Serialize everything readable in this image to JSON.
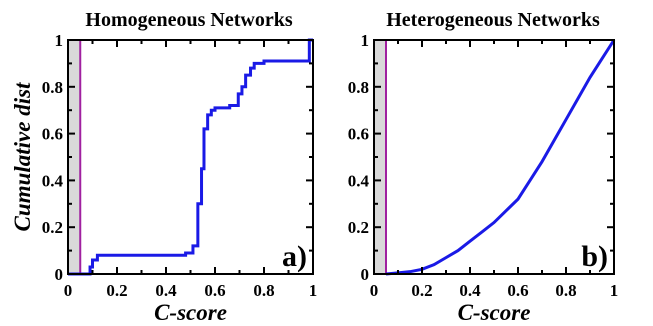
{
  "colors": {
    "series": "#1a1ae6",
    "threshold": "#a020a0",
    "shade": "#d9d9d9",
    "axis": "#000000"
  },
  "chart_data": [
    {
      "type": "line",
      "step": true,
      "title": "Homogeneous Networks",
      "xlabel": "C-score",
      "ylabel": "Cumulative dist",
      "panel_label": "a)",
      "xlim": [
        0,
        1
      ],
      "ylim": [
        0,
        1
      ],
      "xticks": [
        0,
        0.2,
        0.4,
        0.6,
        0.8,
        1
      ],
      "xtick_labels": [
        "0",
        "0.2",
        "0.4",
        "0.6",
        "0.8",
        "1"
      ],
      "yticks": [
        0,
        0.2,
        0.4,
        0.6,
        0.8,
        1
      ],
      "ytick_labels": [
        "0",
        "0.2",
        "0.4",
        "0.6",
        "0.8",
        "1"
      ],
      "threshold_x": 0.05,
      "shaded_region_x": [
        0,
        0.05
      ],
      "grid": false,
      "series": [
        {
          "x": [
            0,
            0.09,
            0.09,
            0.1,
            0.1,
            0.12,
            0.12,
            0.48,
            0.48,
            0.51,
            0.51,
            0.53,
            0.53,
            0.545,
            0.545,
            0.555,
            0.555,
            0.57,
            0.57,
            0.585,
            0.585,
            0.6,
            0.6,
            0.66,
            0.66,
            0.695,
            0.695,
            0.71,
            0.71,
            0.725,
            0.725,
            0.745,
            0.745,
            0.76,
            0.76,
            0.8,
            0.8,
            0.985,
            0.985,
            1.0
          ],
          "y": [
            0,
            0,
            0.03,
            0.03,
            0.06,
            0.06,
            0.08,
            0.08,
            0.09,
            0.09,
            0.12,
            0.12,
            0.3,
            0.3,
            0.45,
            0.45,
            0.62,
            0.62,
            0.68,
            0.68,
            0.7,
            0.7,
            0.71,
            0.71,
            0.72,
            0.72,
            0.77,
            0.77,
            0.8,
            0.8,
            0.85,
            0.85,
            0.88,
            0.88,
            0.9,
            0.9,
            0.91,
            0.91,
            1.0,
            1.0
          ]
        }
      ]
    },
    {
      "type": "line",
      "step": false,
      "title": "Heterogeneous Networks",
      "xlabel": "C-score",
      "ylabel": "",
      "panel_label": "b)",
      "xlim": [
        0,
        1
      ],
      "ylim": [
        0,
        1
      ],
      "xticks": [
        0,
        0.2,
        0.4,
        0.6,
        0.8,
        1
      ],
      "xtick_labels": [
        "0",
        "0.2",
        "0.4",
        "0.6",
        "0.8",
        "1"
      ],
      "yticks": [
        0,
        0.2,
        0.4,
        0.6,
        0.8,
        1
      ],
      "ytick_labels": [
        "0",
        "0.2",
        "0.4",
        "0.6",
        "0.8",
        "1"
      ],
      "threshold_x": 0.05,
      "shaded_region_x": [
        0,
        0.05
      ],
      "grid": false,
      "series": [
        {
          "x": [
            0.05,
            0.1,
            0.15,
            0.2,
            0.25,
            0.3,
            0.35,
            0.4,
            0.45,
            0.5,
            0.55,
            0.6,
            0.65,
            0.7,
            0.75,
            0.8,
            0.85,
            0.9,
            0.95,
            1.0
          ],
          "y": [
            0.0,
            0.005,
            0.01,
            0.02,
            0.04,
            0.07,
            0.1,
            0.14,
            0.18,
            0.22,
            0.27,
            0.32,
            0.4,
            0.48,
            0.57,
            0.66,
            0.75,
            0.84,
            0.92,
            1.0
          ]
        }
      ]
    }
  ]
}
